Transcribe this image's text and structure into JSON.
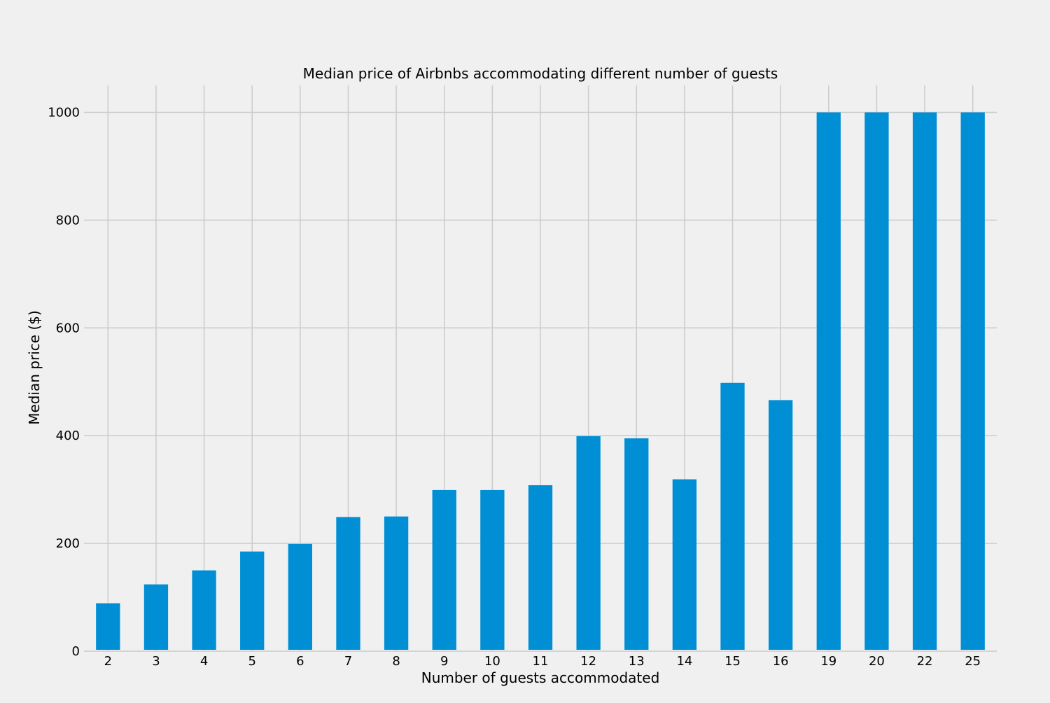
{
  "chart_data": {
    "type": "bar",
    "title": "Median price of Airbnbs accommodating different number of guests",
    "xlabel": "Number of guests accommodated",
    "ylabel": "Median price ($)",
    "categories": [
      "2",
      "3",
      "4",
      "5",
      "6",
      "7",
      "8",
      "9",
      "10",
      "11",
      "12",
      "13",
      "14",
      "15",
      "16",
      "19",
      "20",
      "22",
      "25"
    ],
    "values": [
      89,
      124,
      150,
      185,
      199,
      249,
      250,
      299,
      299,
      308,
      399,
      395,
      319,
      498,
      466,
      1000,
      1000,
      1000,
      1000
    ],
    "ylim": [
      0,
      1050
    ],
    "yticks": [
      0,
      200,
      400,
      600,
      800,
      1000
    ],
    "grid": true,
    "legend": "none",
    "colors": {
      "bar": "#008fd5",
      "background": "#f0f0f0",
      "grid": "#cbcbcb"
    }
  }
}
